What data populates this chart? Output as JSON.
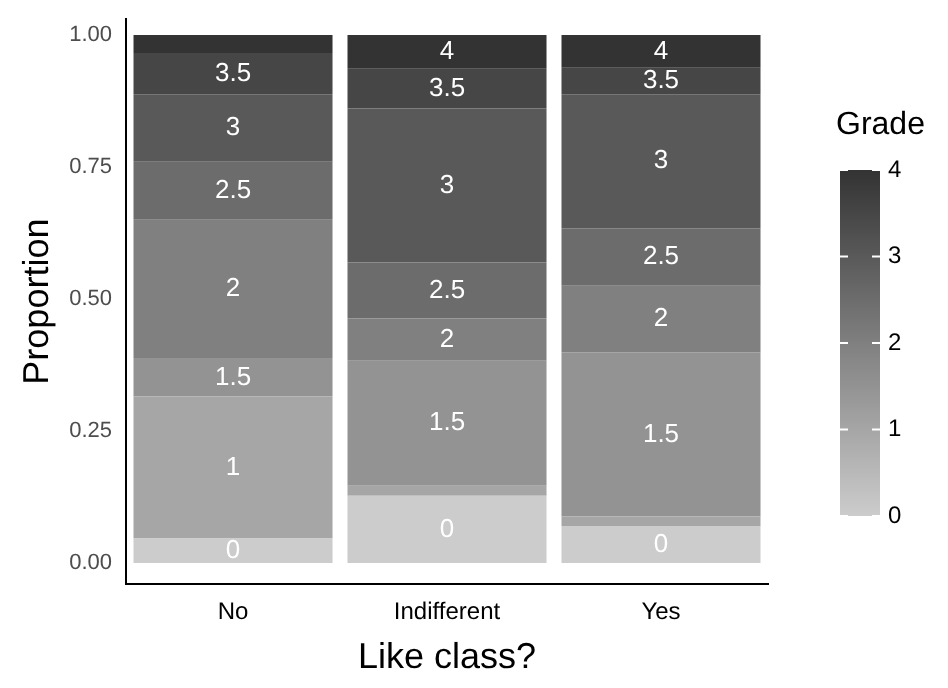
{
  "chart_data": {
    "type": "bar",
    "stacked": true,
    "xlabel": "Like class?",
    "ylabel": "Proportion",
    "clabel": "Grade",
    "clim": [
      0,
      4
    ],
    "cticks": [
      0,
      1,
      2,
      3,
      4
    ],
    "categories": [
      "No",
      "Indifferent",
      "Yes"
    ],
    "ylim": [
      -0.04,
      1.03
    ],
    "yticks": [
      {
        "value": 0,
        "label": "0.00"
      },
      {
        "value": 0.25,
        "label": "0.25"
      },
      {
        "value": 0.5,
        "label": "0.50"
      },
      {
        "value": 0.75,
        "label": "0.75"
      },
      {
        "value": 1,
        "label": "1.00"
      }
    ],
    "grid": false,
    "legend": false,
    "series": [
      {
        "name": "0",
        "color": "#cccccc",
        "values": [
          0.046,
          0.127,
          0.07
        ]
      },
      {
        "name": "1",
        "color": "#a6a6a6",
        "values": [
          0.269,
          0.019,
          0.018
        ]
      },
      {
        "name": "1.5",
        "color": "#939393",
        "values": [
          0.073,
          0.237,
          0.311
        ]
      },
      {
        "name": "2",
        "color": "#808080",
        "values": [
          0.262,
          0.08,
          0.126
        ]
      },
      {
        "name": "2.5",
        "color": "#6c6c6c",
        "values": [
          0.11,
          0.106,
          0.109
        ]
      },
      {
        "name": "3",
        "color": "#595959",
        "values": [
          0.128,
          0.292,
          0.254
        ]
      },
      {
        "name": "3.5",
        "color": "#464646",
        "values": [
          0.078,
          0.075,
          0.05
        ]
      },
      {
        "name": "4",
        "color": "#333333",
        "values": [
          0.034,
          0.064,
          0.062
        ]
      }
    ]
  }
}
